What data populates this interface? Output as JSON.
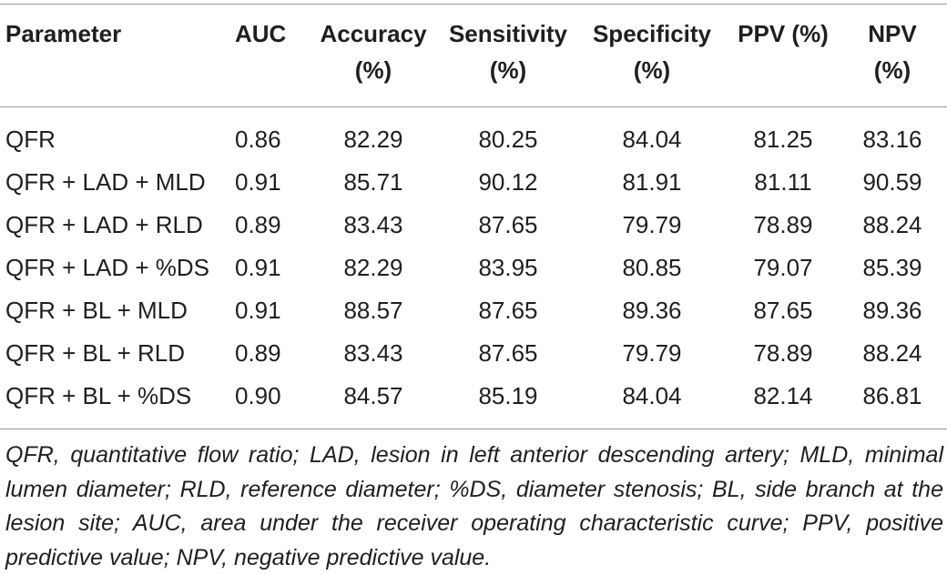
{
  "table": {
    "headers": [
      {
        "line1": "Parameter",
        "line2": ""
      },
      {
        "line1": "AUC",
        "line2": ""
      },
      {
        "line1": "Accuracy",
        "line2": "(%)"
      },
      {
        "line1": "Sensitivity",
        "line2": "(%)"
      },
      {
        "line1": "Specificity",
        "line2": "(%)"
      },
      {
        "line1": "PPV (%)",
        "line2": ""
      },
      {
        "line1": "NPV",
        "line2": "(%)"
      }
    ],
    "rows": [
      [
        "QFR",
        "0.86",
        "82.29",
        "80.25",
        "84.04",
        "81.25",
        "83.16"
      ],
      [
        "QFR + LAD + MLD",
        "0.91",
        "85.71",
        "90.12",
        "81.91",
        "81.11",
        "90.59"
      ],
      [
        "QFR + LAD + RLD",
        "0.89",
        "83.43",
        "87.65",
        "79.79",
        "78.89",
        "88.24"
      ],
      [
        "QFR + LAD + %DS",
        "0.91",
        "82.29",
        "83.95",
        "80.85",
        "79.07",
        "85.39"
      ],
      [
        "QFR + BL + MLD",
        "0.91",
        "88.57",
        "87.65",
        "89.36",
        "87.65",
        "89.36"
      ],
      [
        "QFR + BL + RLD",
        "0.89",
        "83.43",
        "87.65",
        "79.79",
        "78.89",
        "88.24"
      ],
      [
        "QFR + BL + %DS",
        "0.90",
        "84.57",
        "85.19",
        "84.04",
        "82.14",
        "86.81"
      ]
    ]
  },
  "footnote": "QFR, quantitative flow ratio; LAD, lesion in left anterior descending artery; MLD, minimal lumen diameter; RLD, reference diameter; %DS, diameter stenosis; BL, side branch at the lesion site; AUC, area under the receiver operating characteristic curve; PPV, positive predictive value; NPV, negative predictive value."
}
